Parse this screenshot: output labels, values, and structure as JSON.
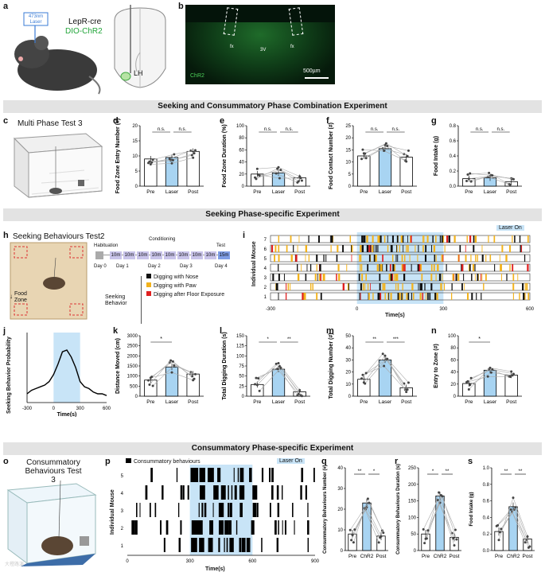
{
  "panels": {
    "a": {
      "label": "a",
      "laser": "473nm Laser",
      "mouse_line": "LepR-cre",
      "virus": "DIO-ChR2",
      "region": "LH"
    },
    "b": {
      "label": "b",
      "v3": "3V",
      "fx1": "fx",
      "fx2": "fx",
      "stain": "ChR2",
      "scale": "500µm"
    },
    "c": {
      "label": "c",
      "title": "Multi Phase Test 3"
    },
    "h": {
      "label": "h",
      "title": "Seeking Behaviours Test2",
      "food_zone": "Food Zone",
      "timeline": {
        "habituation": "Habituation",
        "conditioning": "Conditioning",
        "test": "Test",
        "blocks": [
          "10m",
          "10m",
          "10m",
          "10m",
          "10m",
          "10m",
          "10m",
          "10m",
          "15m"
        ],
        "days": [
          "Day 0",
          "Day 1",
          "Day 2",
          "Day 3",
          "Day 4"
        ]
      },
      "legend_title": "Seeking Behavior",
      "legend": [
        {
          "label": "Digging with Nose",
          "color": "#111111"
        },
        {
          "label": "Digging with Paw",
          "color": "#f2b21c"
        },
        {
          "label": "Digging after Floor Exposure",
          "color": "#e02020"
        }
      ]
    },
    "i": {
      "label": "i",
      "laser_label": "Laser On",
      "ylabel": "Individual Mouse",
      "xlabel": "Time(s)",
      "xticks": [
        "-300",
        "0",
        "300",
        "600"
      ],
      "rows": [
        "7",
        "6",
        "5",
        "4",
        "3",
        "2",
        "1"
      ]
    },
    "j": {
      "label": "j",
      "ylabel": "Seeking Behavior Probability",
      "xlabel": "Time(s)",
      "xticks": [
        "-300",
        "0",
        "300",
        "600"
      ]
    },
    "o": {
      "label": "o",
      "title": "Consummatory Behaviours Test 3"
    },
    "p": {
      "label": "p",
      "legend": "Consummatory behaviours",
      "laser_label": "Laser On",
      "ylabel": "Individual Mouse",
      "xlabel": "Time(s)",
      "xticks": [
        "0",
        "300",
        "600",
        "900"
      ],
      "rows": [
        "5",
        "4",
        "3",
        "2",
        "1"
      ]
    }
  },
  "banners": {
    "b1": "Seeking and Consummatory Phase Combination Experiment",
    "b2": "Seeking Phase-specific Experiment",
    "b3": "Consummatory Phase-specific Experiment"
  },
  "watermark": "大橙路演",
  "chart_data": [
    {
      "id": "d",
      "type": "bar",
      "ylabel": "Food Zone Entry Number (#)",
      "categories": [
        "Pre",
        "Laser",
        "Post"
      ],
      "values": [
        9,
        9.5,
        11.5
      ],
      "ylim": [
        0,
        20
      ],
      "yticks": [
        "0",
        "5",
        "10",
        "15",
        "20"
      ],
      "sig": [
        "n.s.",
        "n.s."
      ]
    },
    {
      "id": "e",
      "type": "bar",
      "ylabel": "Food Zone Duration (%)",
      "categories": [
        "Pre",
        "Laser",
        "Post"
      ],
      "values": [
        20,
        22,
        14
      ],
      "ylim": [
        0,
        100
      ],
      "yticks": [
        "0",
        "20",
        "40",
        "60",
        "80",
        "100"
      ],
      "sig": [
        "n.s.",
        "n.s."
      ]
    },
    {
      "id": "f",
      "type": "bar",
      "ylabel": "Food Contact Number (#)",
      "categories": [
        "Pre",
        "Laser",
        "Post"
      ],
      "values": [
        12.5,
        15.5,
        12
      ],
      "ylim": [
        0,
        25
      ],
      "yticks": [
        "0",
        "5",
        "10",
        "15",
        "20",
        "25"
      ],
      "sig": [
        "n.s.",
        "n.s."
      ]
    },
    {
      "id": "g",
      "type": "bar",
      "ylabel": "Food Intake (g)",
      "categories": [
        "Pre",
        "Laser",
        "Post"
      ],
      "values": [
        0.1,
        0.11,
        0.06
      ],
      "ylim": [
        0,
        0.8
      ],
      "yticks": [
        "0.0",
        "0.2",
        "0.4",
        "0.6",
        "0.8"
      ],
      "sig": [
        "n.s.",
        "n.s."
      ]
    },
    {
      "id": "k",
      "type": "bar",
      "ylabel": "Distance Moved (cm)",
      "categories": [
        "Pre",
        "Laser",
        "Post"
      ],
      "values": [
        800,
        1450,
        1100
      ],
      "ylim": [
        0,
        3000
      ],
      "yticks": [
        "0",
        "500",
        "1000",
        "1500",
        "2000",
        "2500",
        "3000"
      ],
      "sig": [
        "*"
      ]
    },
    {
      "id": "l",
      "type": "bar",
      "ylabel": "Total Digging Duration (s)",
      "categories": [
        "Pre",
        "Laser",
        "Post"
      ],
      "values": [
        29,
        67,
        11
      ],
      "ylim": [
        0,
        150
      ],
      "yticks": [
        "0",
        "25",
        "50",
        "75",
        "100",
        "125",
        "150"
      ],
      "sig": [
        "*",
        "**"
      ]
    },
    {
      "id": "m",
      "type": "bar",
      "ylabel": "Total Digging Number (#)",
      "categories": [
        "Pre",
        "Laser",
        "Post"
      ],
      "values": [
        14,
        30,
        7
      ],
      "ylim": [
        0,
        50
      ],
      "yticks": [
        "0",
        "10",
        "20",
        "30",
        "40",
        "50"
      ],
      "sig": [
        "**",
        "***"
      ]
    },
    {
      "id": "n",
      "type": "bar",
      "ylabel": "Entry to Zone (#)",
      "categories": [
        "Pre",
        "Laser",
        "Post"
      ],
      "values": [
        21,
        43,
        35
      ],
      "ylim": [
        0,
        100
      ],
      "yticks": [
        "0",
        "20",
        "40",
        "60",
        "80",
        "100"
      ],
      "sig": [
        "*"
      ]
    },
    {
      "id": "q",
      "type": "bar",
      "ylabel": "Consummatory Behaviours Number (#)",
      "categories": [
        "Pre",
        "ChR2",
        "Post"
      ],
      "values": [
        8,
        23,
        7
      ],
      "ylim": [
        0,
        40
      ],
      "yticks": [
        "0",
        "10",
        "20",
        "30",
        "40"
      ],
      "sig": [
        "**",
        "*"
      ]
    },
    {
      "id": "r",
      "type": "bar",
      "ylabel": "Consummatory Behaviours Duration (s)",
      "categories": [
        "Pre",
        "ChR2",
        "Post"
      ],
      "values": [
        50,
        165,
        40
      ],
      "ylim": [
        0,
        250
      ],
      "yticks": [
        "0",
        "50",
        "100",
        "150",
        "200",
        "250"
      ],
      "sig": [
        "*",
        "**"
      ]
    },
    {
      "id": "s",
      "type": "bar",
      "ylabel": "Food Intake (g)",
      "categories": [
        "Pre",
        "ChR2",
        "Post"
      ],
      "values": [
        0.23,
        0.53,
        0.14
      ],
      "ylim": [
        0,
        1.0
      ],
      "yticks": [
        "0.0",
        "0.2",
        "0.4",
        "0.6",
        "0.8",
        "1.0"
      ],
      "sig": [
        "**",
        "**"
      ]
    },
    {
      "id": "j",
      "type": "line",
      "xlabel": "Time(s)",
      "ylabel": "Seeking Behavior Probability",
      "x": [
        -300,
        -250,
        -200,
        -150,
        -100,
        -50,
        0,
        50,
        100,
        150,
        200,
        250,
        300,
        350,
        400,
        450,
        500,
        550,
        600
      ],
      "values": [
        0.05,
        0.07,
        0.08,
        0.09,
        0.1,
        0.12,
        0.16,
        0.22,
        0.29,
        0.3,
        0.26,
        0.2,
        0.12,
        0.09,
        0.08,
        0.06,
        0.05,
        0.05,
        0.04
      ],
      "xlim": [
        -300,
        600
      ]
    }
  ]
}
